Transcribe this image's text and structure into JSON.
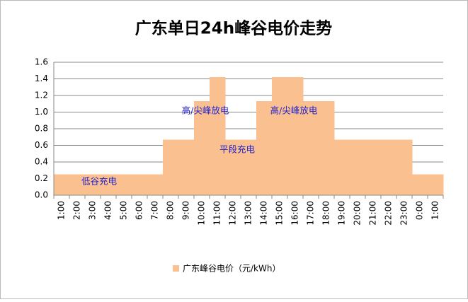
{
  "chart_data": {
    "type": "step-area",
    "title": "广东单日24h峰谷电价走势",
    "categories": [
      "1:00",
      "2:00",
      "3:00",
      "4:00",
      "5:00",
      "6:00",
      "7:00",
      "8:00",
      "9:00",
      "10:00",
      "11:00",
      "12:00",
      "13:00",
      "14:00",
      "15:00",
      "16:00",
      "17:00",
      "18:00",
      "19:00",
      "20:00",
      "21:00",
      "22:00",
      "23:00",
      "0:00",
      "1:00"
    ],
    "series": [
      {
        "name": "广东峰谷电价（元/kWh）",
        "color": "#fac090",
        "values": [
          0.25,
          0.25,
          0.25,
          0.25,
          0.25,
          0.25,
          0.25,
          0.67,
          0.67,
          1.13,
          1.42,
          0.67,
          0.67,
          1.13,
          1.42,
          1.42,
          1.13,
          1.13,
          0.67,
          0.67,
          0.67,
          0.67,
          0.67,
          0.25,
          0.25
        ]
      }
    ],
    "ylim": [
      0,
      1.6
    ],
    "yticks": [
      {
        "value": 0,
        "label": "0.0"
      },
      0.2,
      0.4,
      0.6,
      0.8,
      {
        "value": 1,
        "label": "1.0"
      },
      1.2,
      1.4,
      1.6
    ],
    "grid": true,
    "legend": "bottom",
    "annotations": [
      "低谷充电",
      "高/尖峰放电",
      "平段充电",
      "高/尖峰放电"
    ]
  }
}
